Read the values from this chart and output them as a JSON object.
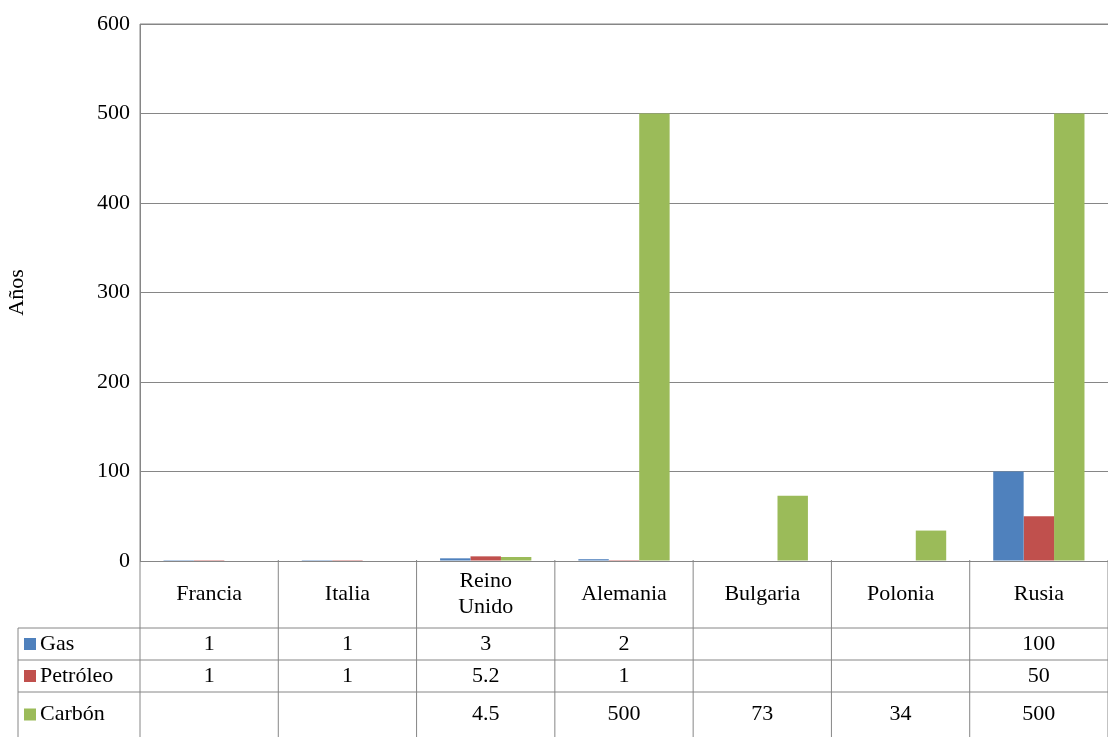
{
  "chart_data": {
    "type": "bar",
    "ylabel": "Años",
    "categories": [
      "Francia",
      "Italia",
      "Reino Unido",
      "Alemania",
      "Bulgaria",
      "Polonia",
      "Rusia"
    ],
    "series": [
      {
        "name": "Gas",
        "color": "#4f81bd",
        "values": [
          1,
          1,
          3,
          2,
          null,
          null,
          100
        ]
      },
      {
        "name": "Petróleo",
        "color": "#c0504d",
        "values": [
          1,
          1,
          5.2,
          1,
          null,
          null,
          50
        ]
      },
      {
        "name": "Carbón",
        "color": "#9bbb59",
        "values": [
          null,
          null,
          4.5,
          500,
          73,
          34,
          500
        ]
      }
    ],
    "ylim": [
      0,
      600
    ],
    "yticks": [
      0,
      100,
      200,
      300,
      400,
      500,
      600
    ],
    "grid": "y",
    "legend": "bottom",
    "data_labels": true
  }
}
